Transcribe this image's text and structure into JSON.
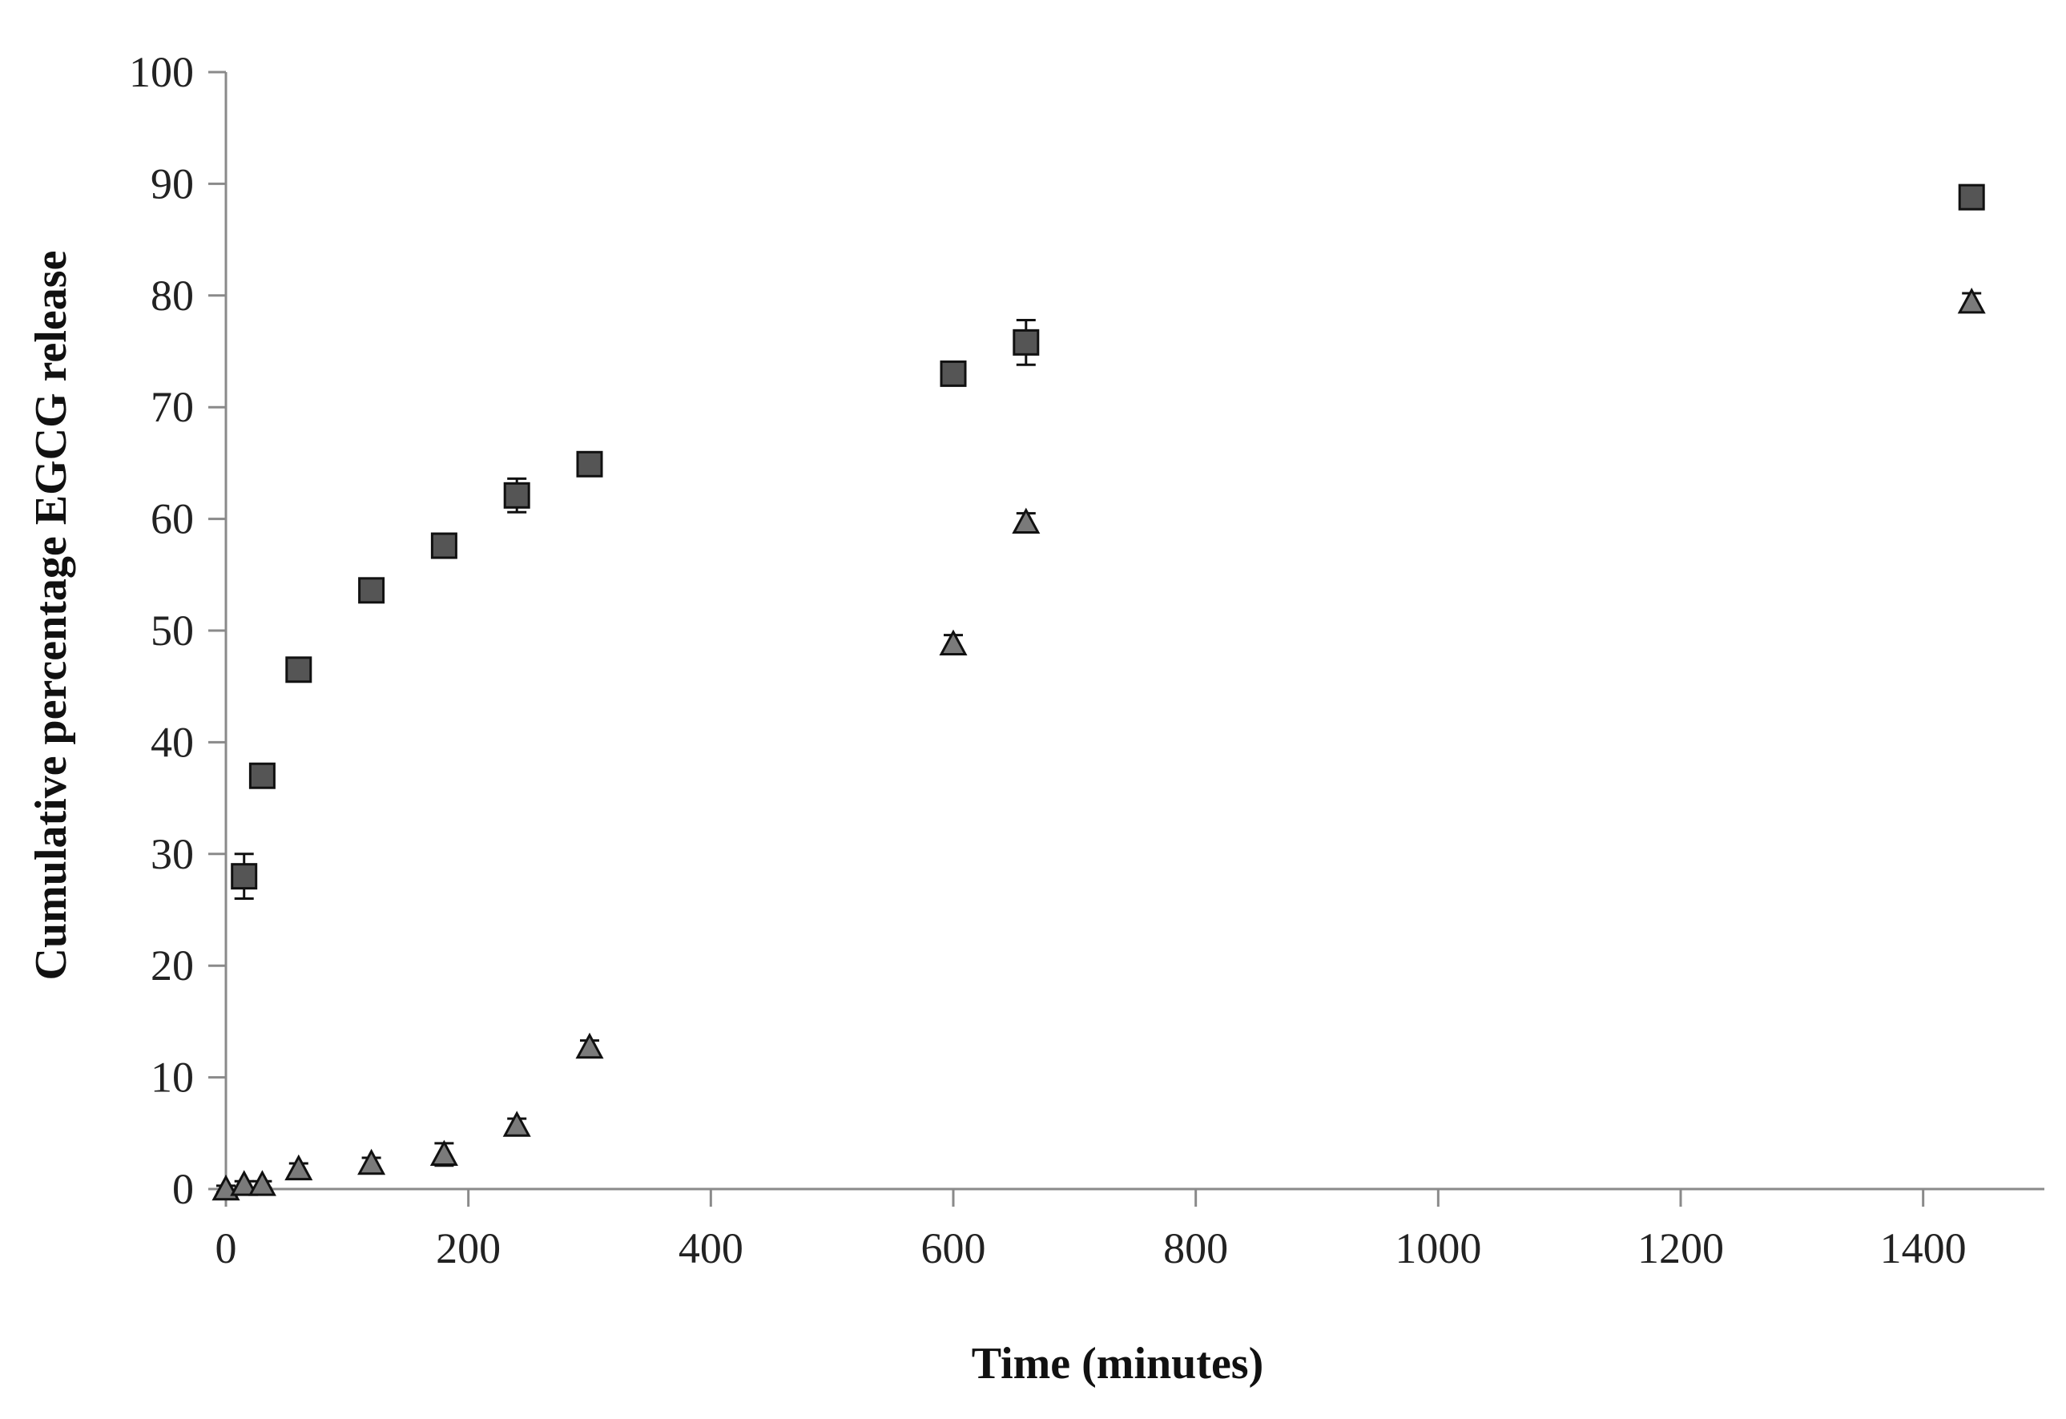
{
  "chart_data": {
    "type": "scatter",
    "title": "",
    "xlabel": "Time (minutes)",
    "ylabel": "Cumulative percentage EGCG release",
    "xlim": [
      0,
      1500
    ],
    "ylim": [
      0,
      100
    ],
    "x_ticks": [
      0,
      200,
      400,
      600,
      800,
      1000,
      1200,
      1400
    ],
    "y_ticks": [
      0,
      10,
      20,
      30,
      40,
      50,
      60,
      70,
      80,
      90,
      100
    ],
    "grid": false,
    "legend": "none",
    "series": [
      {
        "marker": "square",
        "color": "#555555",
        "points": [
          {
            "x": 15,
            "y": 28,
            "err": 2
          },
          {
            "x": 30,
            "y": 37,
            "err": 0.8
          },
          {
            "x": 60,
            "y": 46.5,
            "err": 0.8
          },
          {
            "x": 120,
            "y": 53.6,
            "err": 0.6
          },
          {
            "x": 180,
            "y": 57.6,
            "err": 0.6
          },
          {
            "x": 240,
            "y": 62.1,
            "err": 1.5
          },
          {
            "x": 300,
            "y": 64.9,
            "err": 0.6
          },
          {
            "x": 600,
            "y": 73,
            "err": 0.6
          },
          {
            "x": 660,
            "y": 75.8,
            "err": 2
          },
          {
            "x": 1440,
            "y": 88.8,
            "err": 0.8
          }
        ]
      },
      {
        "marker": "triangle",
        "color": "#7a7a7a",
        "points": [
          {
            "x": 0,
            "y": 0,
            "err": 0.3
          },
          {
            "x": 15,
            "y": 0.4,
            "err": 0.3
          },
          {
            "x": 30,
            "y": 0.4,
            "err": 0.3
          },
          {
            "x": 60,
            "y": 1.8,
            "err": 0.5
          },
          {
            "x": 120,
            "y": 2.3,
            "err": 0.5
          },
          {
            "x": 180,
            "y": 3.1,
            "err": 1
          },
          {
            "x": 240,
            "y": 5.7,
            "err": 0.6
          },
          {
            "x": 300,
            "y": 12.7,
            "err": 0.6
          },
          {
            "x": 600,
            "y": 48.8,
            "err": 0.8
          },
          {
            "x": 660,
            "y": 59.7,
            "err": 0.8
          },
          {
            "x": 1440,
            "y": 79.4,
            "err": 0.8
          }
        ]
      }
    ]
  }
}
